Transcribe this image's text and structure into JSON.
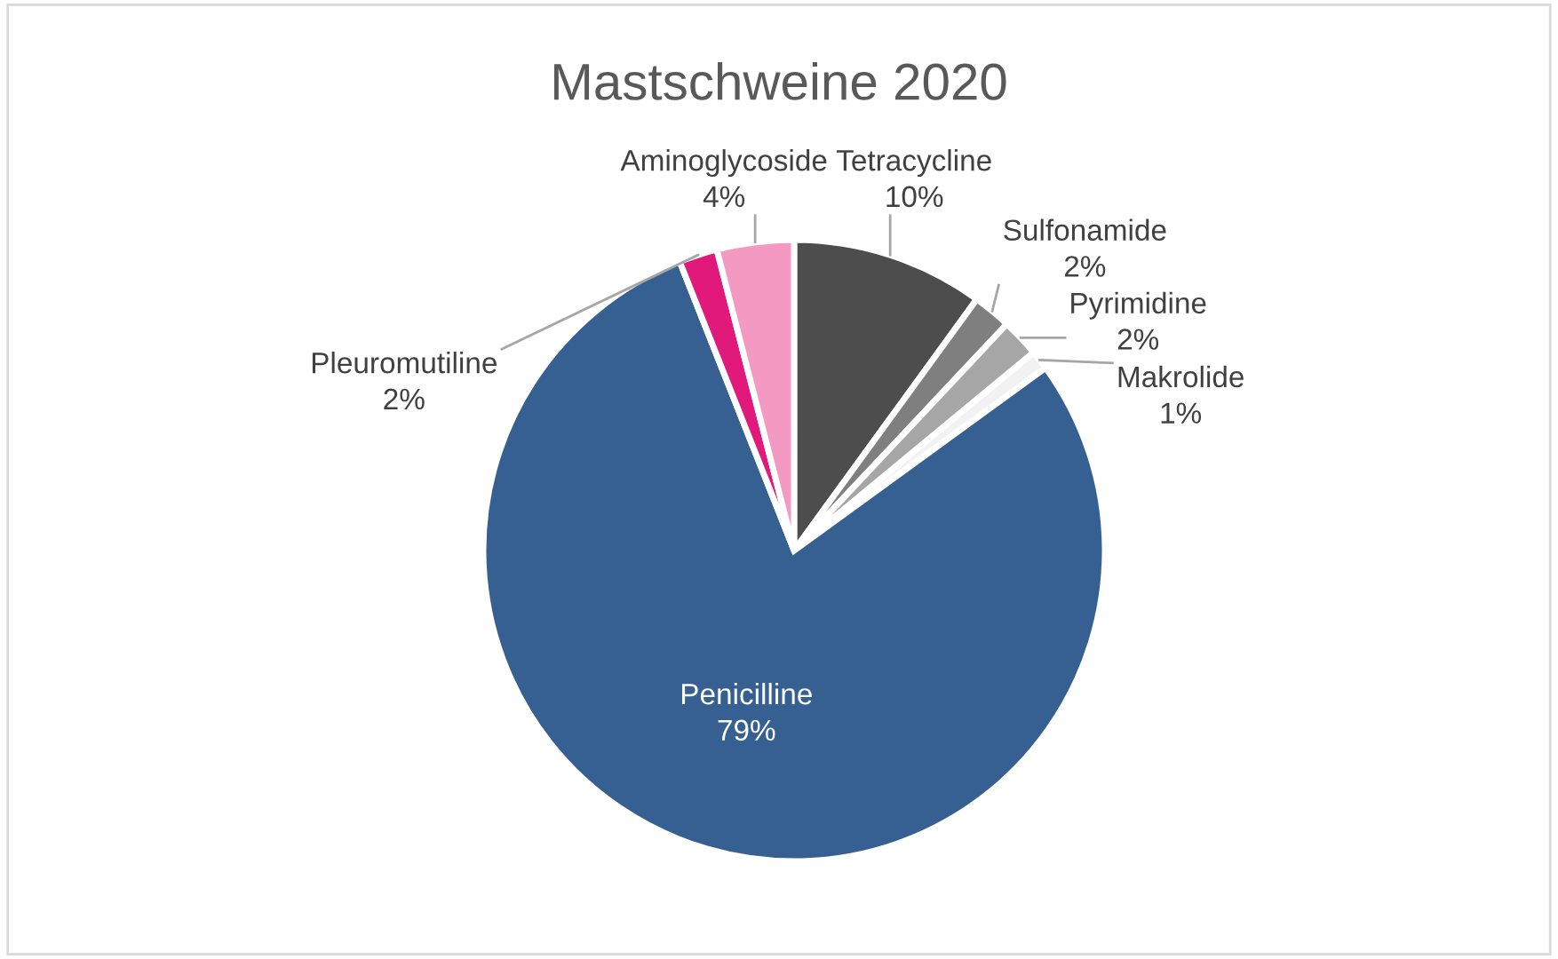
{
  "chart_data": {
    "type": "pie",
    "title": "Mastschweine 2020",
    "categories": [
      "Tetracycline",
      "Sulfonamide",
      "Pyrimidine",
      "Makrolide",
      "Penicilline",
      "Pleuromutiline",
      "Aminoglycoside"
    ],
    "values": [
      10,
      2,
      2,
      1,
      79,
      2,
      4
    ],
    "value_labels": [
      "10%",
      "2%",
      "2%",
      "1%",
      "79%",
      "2%",
      "4%"
    ],
    "colors": [
      "#4d4d4d",
      "#7f7f7f",
      "#a6a6a6",
      "#f2f2f2",
      "#376092",
      "#e0197a",
      "#f49ac2"
    ]
  }
}
